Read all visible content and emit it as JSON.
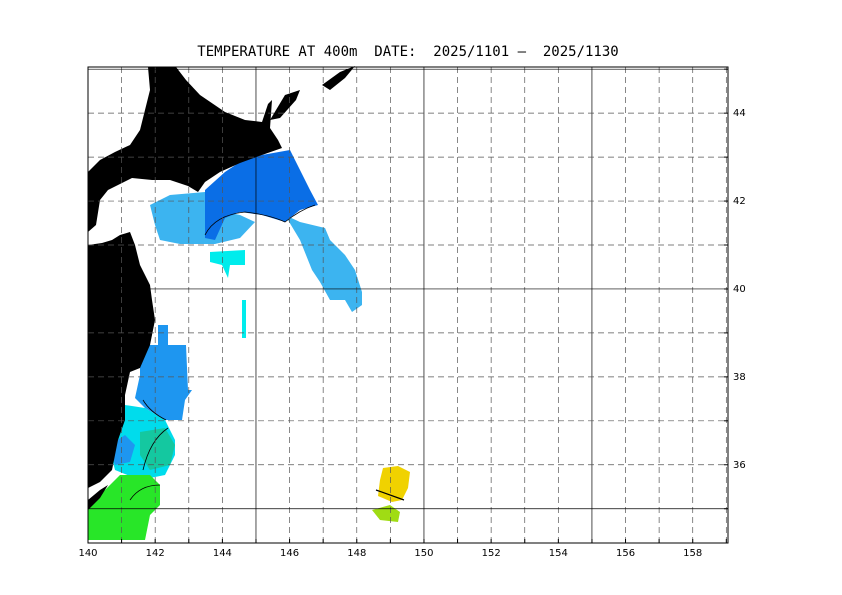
{
  "map": {
    "title": "TEMPERATURE AT 400m  DATE:  2025/1101 –  2025/1130",
    "xlim": [
      140,
      159.05
    ],
    "ylim": [
      34.22,
      45.05
    ],
    "xticks": [
      140,
      142,
      144,
      146,
      148,
      150,
      152,
      154,
      156,
      158
    ],
    "yticks": [
      36,
      38,
      40,
      42,
      44
    ]
  }
}
